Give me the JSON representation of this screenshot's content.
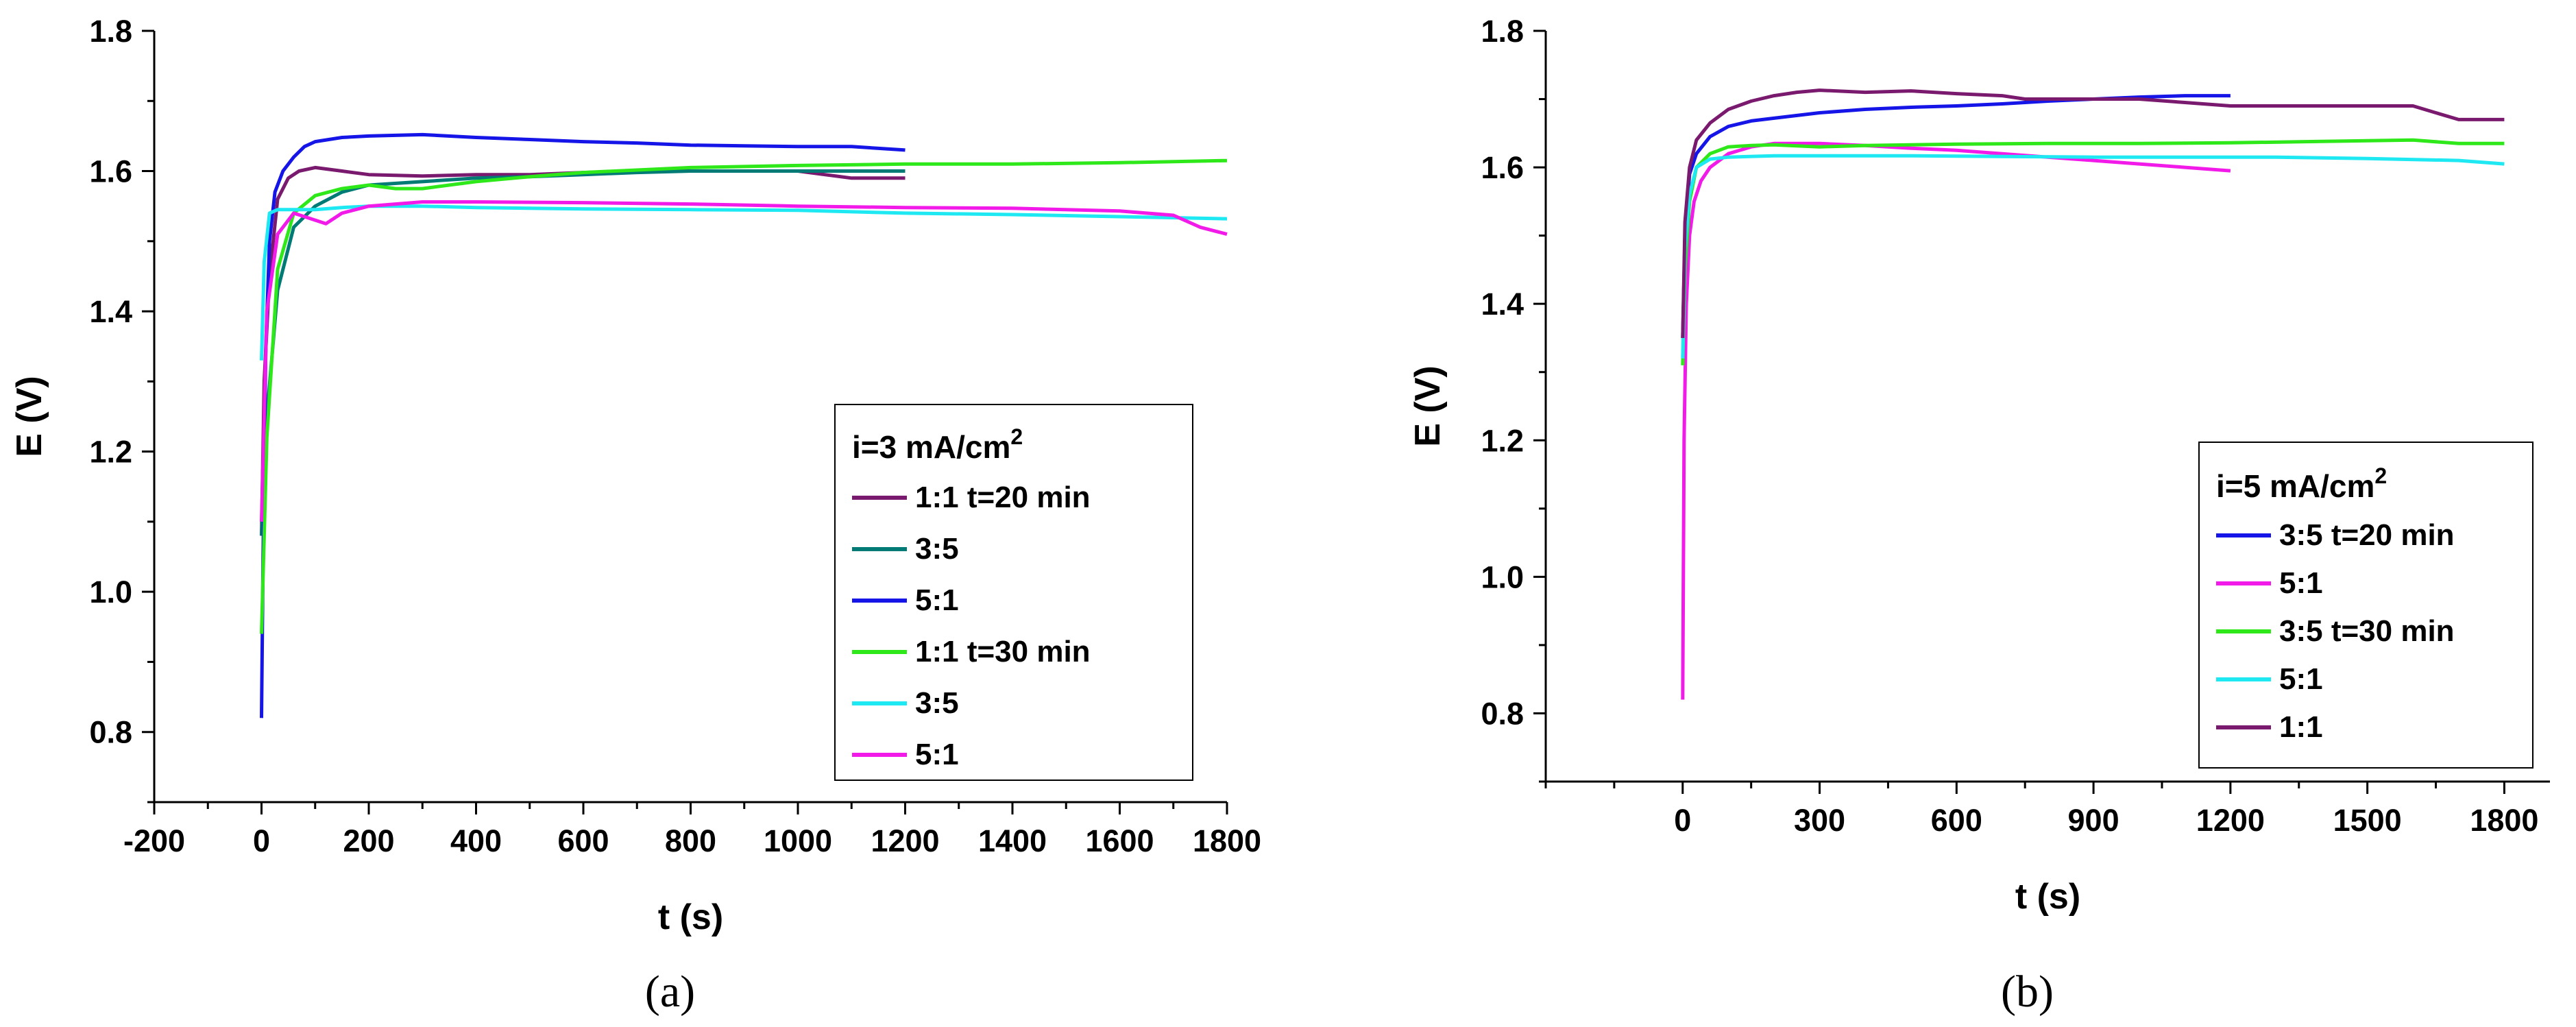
{
  "chart_data": [
    {
      "type": "line",
      "panel_caption": "(a)",
      "xlabel": "t (s)",
      "ylabel": "E (V)",
      "xlim": [
        -200,
        1800
      ],
      "ylim": [
        0.7,
        1.8
      ],
      "xticks": [
        -200,
        0,
        200,
        400,
        600,
        800,
        1000,
        1200,
        1400,
        1600,
        1800
      ],
      "xtick_labels": [
        "-200",
        "0",
        "200",
        "400",
        "600",
        "800",
        "1000",
        "1200",
        "1400",
        "1600",
        "1800"
      ],
      "yticks": [
        0.8,
        1.0,
        1.2,
        1.4,
        1.6,
        1.8
      ],
      "ytick_labels": [
        "0.8",
        "1.0",
        "1.2",
        "1.4",
        "1.6",
        "1.8"
      ],
      "legend": {
        "title_main": "i=3 mA/cm",
        "title_sup": "2",
        "position": "center-right"
      },
      "series": [
        {
          "name": "1:1 t=20 min",
          "color": "#7a1a6e",
          "x": [
            0,
            5,
            15,
            30,
            50,
            70,
            100,
            150,
            200,
            300,
            400,
            500,
            600,
            700,
            800,
            900,
            1000,
            1050,
            1100,
            1200
          ],
          "y": [
            1.08,
            1.3,
            1.45,
            1.56,
            1.59,
            1.6,
            1.605,
            1.6,
            1.595,
            1.593,
            1.595,
            1.595,
            1.598,
            1.6,
            1.6,
            1.6,
            1.6,
            1.595,
            1.59,
            1.59
          ]
        },
        {
          "name": "3:5",
          "color": "#007a74",
          "x": [
            0,
            10,
            30,
            60,
            100,
            150,
            200,
            300,
            400,
            500,
            600,
            700,
            800,
            900,
            1000,
            1100,
            1200
          ],
          "y": [
            1.08,
            1.25,
            1.43,
            1.52,
            1.55,
            1.57,
            1.58,
            1.585,
            1.59,
            1.592,
            1.595,
            1.598,
            1.6,
            1.6,
            1.6,
            1.6,
            1.6
          ]
        },
        {
          "name": "5:1",
          "color": "#1515e8",
          "x": [
            0,
            3,
            8,
            15,
            25,
            40,
            60,
            80,
            100,
            150,
            200,
            300,
            400,
            500,
            600,
            700,
            800,
            900,
            1000,
            1100,
            1200
          ],
          "y": [
            0.82,
            1.05,
            1.35,
            1.5,
            1.57,
            1.6,
            1.62,
            1.635,
            1.642,
            1.648,
            1.65,
            1.652,
            1.648,
            1.645,
            1.642,
            1.64,
            1.637,
            1.636,
            1.635,
            1.635,
            1.63
          ]
        },
        {
          "name": "1:1 t=30 min",
          "color": "#2ee81a",
          "x": [
            0,
            10,
            30,
            60,
            100,
            150,
            200,
            250,
            300,
            400,
            500,
            600,
            800,
            1000,
            1200,
            1400,
            1600,
            1800
          ],
          "y": [
            0.94,
            1.22,
            1.46,
            1.54,
            1.565,
            1.575,
            1.58,
            1.575,
            1.575,
            1.585,
            1.592,
            1.598,
            1.605,
            1.608,
            1.61,
            1.61,
            1.612,
            1.615
          ]
        },
        {
          "name": "3:5",
          "color": "#1ee8f2",
          "x": [
            0,
            5,
            15,
            30,
            50,
            100,
            150,
            200,
            300,
            400,
            600,
            800,
            1000,
            1200,
            1400,
            1600,
            1800
          ],
          "y": [
            1.33,
            1.47,
            1.54,
            1.545,
            1.545,
            1.545,
            1.548,
            1.55,
            1.55,
            1.548,
            1.546,
            1.545,
            1.544,
            1.54,
            1.538,
            1.535,
            1.532
          ]
        },
        {
          "name": "5:1",
          "color": "#f21ae8",
          "x": [
            0,
            10,
            30,
            60,
            100,
            120,
            150,
            200,
            300,
            400,
            600,
            800,
            1000,
            1200,
            1400,
            1600,
            1700,
            1750,
            1800
          ],
          "y": [
            1.1,
            1.4,
            1.51,
            1.54,
            1.53,
            1.525,
            1.54,
            1.55,
            1.556,
            1.556,
            1.555,
            1.553,
            1.55,
            1.548,
            1.547,
            1.543,
            1.537,
            1.52,
            1.51
          ]
        }
      ]
    },
    {
      "type": "line",
      "panel_caption": "(b)",
      "xlabel": "t (s)",
      "ylabel": "E (V)",
      "xlim": [
        -300,
        1900
      ],
      "ylim": [
        0.7,
        1.8
      ],
      "xticks": [
        0,
        300,
        600,
        900,
        1200,
        1500,
        1800
      ],
      "xtick_labels": [
        "0",
        "300",
        "600",
        "900",
        "1200",
        "1500",
        "1800"
      ],
      "yticks": [
        0.8,
        1.0,
        1.2,
        1.4,
        1.6,
        1.8
      ],
      "ytick_labels": [
        "0.8",
        "1.0",
        "1.2",
        "1.4",
        "1.6",
        "1.8"
      ],
      "legend": {
        "title_main": "i=5 mA/cm",
        "title_sup": "2",
        "position": "center-right"
      },
      "series": [
        {
          "name": "3:5 t=20 min",
          "color": "#1515e8",
          "x": [
            0,
            5,
            15,
            30,
            60,
            100,
            150,
            200,
            300,
            400,
            500,
            600,
            700,
            800,
            900,
            1000,
            1100,
            1200
          ],
          "y": [
            1.35,
            1.5,
            1.59,
            1.62,
            1.645,
            1.66,
            1.668,
            1.672,
            1.68,
            1.685,
            1.688,
            1.69,
            1.693,
            1.697,
            1.7,
            1.703,
            1.705,
            1.705
          ]
        },
        {
          "name": "5:1",
          "color": "#f21ae8",
          "x": [
            0,
            3,
            8,
            15,
            25,
            40,
            60,
            100,
            150,
            200,
            300,
            400,
            500,
            600,
            700,
            800,
            900,
            1000,
            1100,
            1200
          ],
          "y": [
            0.82,
            1.2,
            1.4,
            1.5,
            1.55,
            1.58,
            1.6,
            1.62,
            1.63,
            1.635,
            1.635,
            1.632,
            1.628,
            1.625,
            1.62,
            1.615,
            1.61,
            1.605,
            1.6,
            1.595
          ]
        },
        {
          "name": "3:5 t=30 min",
          "color": "#2ee81a",
          "x": [
            0,
            5,
            15,
            30,
            60,
            100,
            150,
            200,
            300,
            400,
            600,
            800,
            1000,
            1200,
            1400,
            1600,
            1700,
            1800
          ],
          "y": [
            1.31,
            1.45,
            1.55,
            1.6,
            1.62,
            1.63,
            1.632,
            1.633,
            1.63,
            1.632,
            1.634,
            1.635,
            1.635,
            1.636,
            1.638,
            1.64,
            1.635,
            1.635
          ]
        },
        {
          "name": "5:1",
          "color": "#1ee8f2",
          "x": [
            0,
            5,
            15,
            30,
            60,
            100,
            200,
            300,
            500,
            700,
            900,
            1100,
            1300,
            1500,
            1700,
            1800
          ],
          "y": [
            1.32,
            1.48,
            1.56,
            1.6,
            1.612,
            1.615,
            1.617,
            1.617,
            1.617,
            1.616,
            1.615,
            1.615,
            1.615,
            1.613,
            1.61,
            1.605
          ]
        },
        {
          "name": "1:1",
          "color": "#7a1a6e",
          "x": [
            0,
            5,
            15,
            30,
            60,
            100,
            150,
            200,
            250,
            300,
            400,
            500,
            600,
            700,
            750,
            900,
            1000,
            1100,
            1200,
            1300,
            1400,
            1500,
            1600,
            1650,
            1700,
            1800
          ],
          "y": [
            1.35,
            1.52,
            1.6,
            1.64,
            1.665,
            1.685,
            1.697,
            1.705,
            1.71,
            1.713,
            1.71,
            1.712,
            1.708,
            1.705,
            1.7,
            1.7,
            1.7,
            1.695,
            1.69,
            1.69,
            1.69,
            1.69,
            1.69,
            1.68,
            1.67,
            1.67
          ]
        }
      ]
    }
  ]
}
